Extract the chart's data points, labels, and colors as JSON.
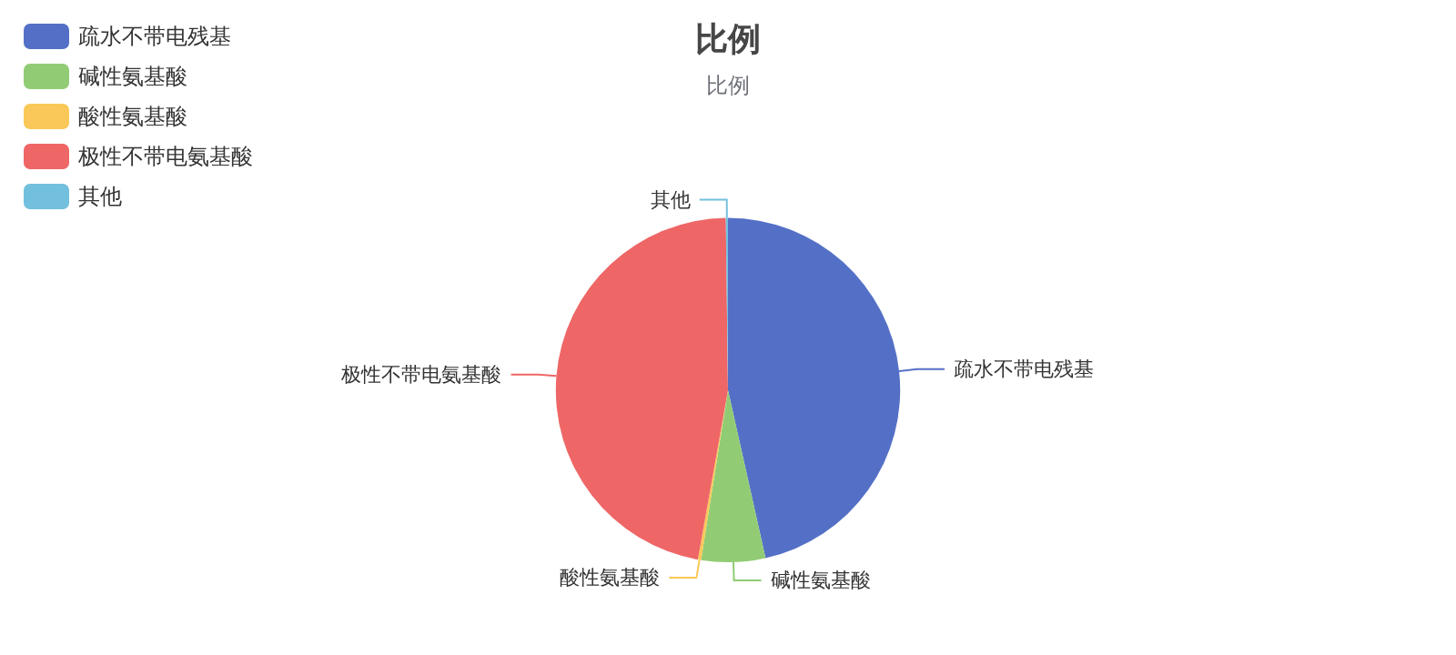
{
  "chart_data": {
    "type": "pie",
    "title": "比例",
    "subtitle": "比例",
    "categories": [
      "疏水不带电残基",
      "碱性氨基酸",
      "酸性氨基酸",
      "极性不带电氨基酸",
      "其他"
    ],
    "values": [
      46.5,
      6,
      0.3,
      47,
      0.2
    ],
    "colors": [
      "#5470c6",
      "#91cc75",
      "#fac858",
      "#ee6666",
      "#73c0de"
    ],
    "legend": "top left"
  }
}
